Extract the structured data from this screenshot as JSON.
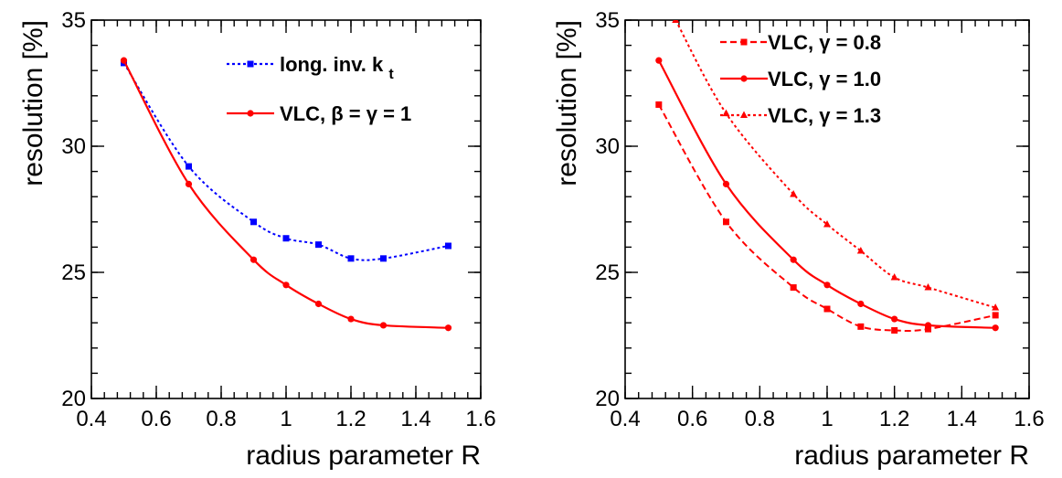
{
  "chart_data": [
    {
      "type": "line",
      "xlabel": "radius parameter R",
      "ylabel": "resolution [%]",
      "xlim": [
        0.4,
        1.6
      ],
      "ylim": [
        20,
        35
      ],
      "xticks": [
        0.4,
        0.6,
        0.8,
        1.0,
        1.2,
        1.4,
        1.6
      ],
      "xtick_labels": [
        "0.4",
        "0.6",
        "0.8",
        "1",
        "1.2",
        "1.4",
        "1.6"
      ],
      "yticks": [
        20,
        25,
        30,
        35
      ],
      "ytick_labels": [
        "20",
        "25",
        "30",
        "35"
      ],
      "grid": false,
      "legend_position": "top-right",
      "series": [
        {
          "name": "long. inv. k",
          "name_subscript": "t",
          "color": "#0000ff",
          "marker": "square",
          "line_style": "dotted",
          "x": [
            0.5,
            0.7,
            0.9,
            1.0,
            1.1,
            1.2,
            1.3,
            1.5
          ],
          "y": [
            33.3,
            29.2,
            27.0,
            26.35,
            26.1,
            25.55,
            25.55,
            26.05
          ]
        },
        {
          "name": "VLC, β = γ = 1",
          "color": "#ff0000",
          "marker": "circle",
          "line_style": "solid",
          "x": [
            0.5,
            0.7,
            0.9,
            1.0,
            1.1,
            1.2,
            1.3,
            1.5
          ],
          "y": [
            33.4,
            28.5,
            25.5,
            24.5,
            23.75,
            23.15,
            22.9,
            22.8
          ]
        }
      ]
    },
    {
      "type": "line",
      "xlabel": "radius parameter R",
      "ylabel": "resolution [%]",
      "xlim": [
        0.4,
        1.6
      ],
      "ylim": [
        20,
        35
      ],
      "xticks": [
        0.4,
        0.6,
        0.8,
        1.0,
        1.2,
        1.4,
        1.6
      ],
      "xtick_labels": [
        "0.4",
        "0.6",
        "0.8",
        "1",
        "1.2",
        "1.4",
        "1.6"
      ],
      "yticks": [
        20,
        25,
        30,
        35
      ],
      "ytick_labels": [
        "20",
        "25",
        "30",
        "35"
      ],
      "grid": false,
      "legend_position": "top-right",
      "series": [
        {
          "name": "VLC, γ = 0.8",
          "color": "#ff0000",
          "marker": "square",
          "line_style": "dashed",
          "x": [
            0.5,
            0.7,
            0.9,
            1.0,
            1.1,
            1.2,
            1.3,
            1.5
          ],
          "y": [
            31.65,
            27.0,
            24.4,
            23.55,
            22.85,
            22.7,
            22.75,
            23.3
          ]
        },
        {
          "name": "VLC, γ = 1.0",
          "color": "#ff0000",
          "marker": "circle",
          "line_style": "solid",
          "x": [
            0.5,
            0.7,
            0.9,
            1.0,
            1.1,
            1.2,
            1.3,
            1.5
          ],
          "y": [
            33.4,
            28.5,
            25.5,
            24.5,
            23.75,
            23.15,
            22.9,
            22.8
          ]
        },
        {
          "name": "VLC, γ = 1.3",
          "color": "#ff0000",
          "marker": "triangle",
          "line_style": "dotted",
          "x": [
            0.55,
            0.7,
            0.9,
            1.0,
            1.1,
            1.2,
            1.3,
            1.5
          ],
          "y": [
            35.0,
            31.3,
            28.1,
            26.9,
            25.85,
            24.8,
            24.4,
            23.6
          ]
        }
      ]
    }
  ]
}
